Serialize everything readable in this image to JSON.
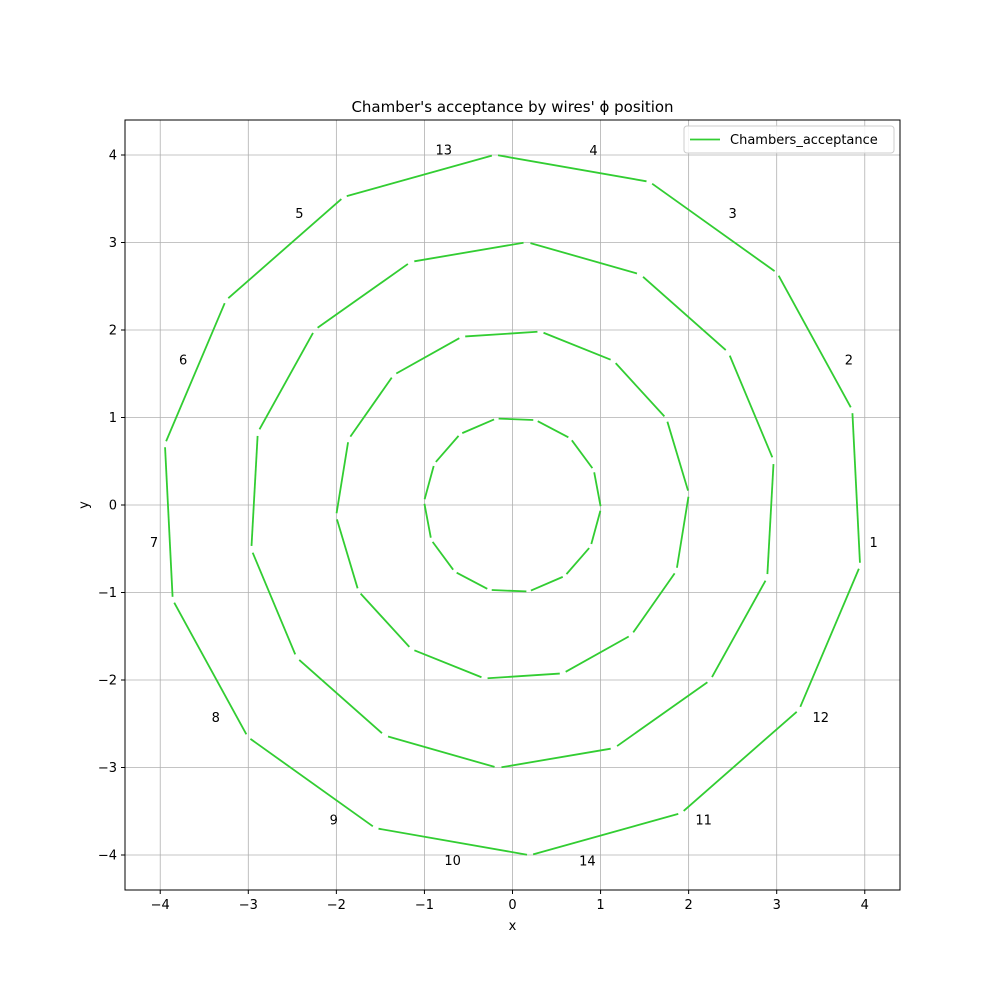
{
  "chart_data": {
    "type": "line",
    "title": "Chamber's acceptance by wires' ϕ position",
    "xlabel": "x",
    "ylabel": "y",
    "xlim": [
      -4.4,
      4.4
    ],
    "ylim": [
      -4.4,
      4.4
    ],
    "xticks": [
      -4,
      -3,
      -2,
      -1,
      0,
      1,
      2,
      3,
      4
    ],
    "yticks": [
      -4,
      -3,
      -2,
      -1,
      0,
      1,
      2,
      3,
      4
    ],
    "xtick_labels": [
      "−4",
      "−3",
      "−2",
      "−1",
      "0",
      "1",
      "2",
      "3",
      "4"
    ],
    "ytick_labels": [
      "−4",
      "−3",
      "−2",
      "−1",
      "0",
      "1",
      "2",
      "3",
      "4"
    ],
    "grid": true,
    "legend": {
      "placement": "top-right",
      "entries": [
        "Chambers_acceptance"
      ]
    },
    "color": "#32cd32",
    "series": [
      {
        "name": "Chambers_acceptance",
        "radius": 4,
        "sectors": 14,
        "start_angle_deg": -10,
        "gap_deg": 1
      },
      {
        "name": "Chambers_acceptance",
        "radius": 3,
        "sectors": 14,
        "start_angle_deg": -16,
        "gap_deg": 1.5
      },
      {
        "name": "Chambers_acceptance",
        "radius": 2,
        "sectors": 14,
        "start_angle_deg": -22,
        "gap_deg": 2
      },
      {
        "name": "Chambers_acceptance",
        "radius": 1,
        "sectors": 14,
        "start_angle_deg": -28,
        "gap_deg": 3
      }
    ],
    "annotations": [
      {
        "text": "1",
        "x": 4.1,
        "y": -0.43
      },
      {
        "text": "2",
        "x": 3.82,
        "y": 1.66
      },
      {
        "text": "3",
        "x": 2.5,
        "y": 3.33
      },
      {
        "text": "4",
        "x": 0.92,
        "y": 4.05
      },
      {
        "text": "13",
        "x": -0.78,
        "y": 4.06
      },
      {
        "text": "5",
        "x": -2.42,
        "y": 3.33
      },
      {
        "text": "6",
        "x": -3.74,
        "y": 1.66
      },
      {
        "text": "7",
        "x": -4.07,
        "y": -0.43
      },
      {
        "text": "8",
        "x": -3.37,
        "y": -2.43
      },
      {
        "text": "9",
        "x": -2.03,
        "y": -3.6
      },
      {
        "text": "10",
        "x": -0.68,
        "y": -4.06
      },
      {
        "text": "14",
        "x": 0.85,
        "y": -4.07
      },
      {
        "text": "11",
        "x": 2.17,
        "y": -3.6
      },
      {
        "text": "12",
        "x": 3.5,
        "y": -2.43
      }
    ]
  }
}
